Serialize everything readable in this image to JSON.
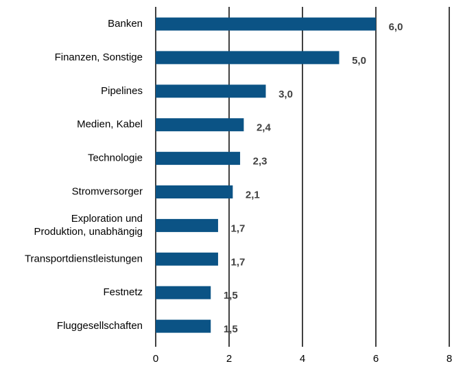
{
  "chart_data": {
    "type": "hbar",
    "categories": [
      "Banken",
      "Finanzen, Sonstige",
      "Pipelines",
      "Medien, Kabel",
      "Technologie",
      "Stromversorger",
      "Exploration und\nProduktion, unabhängig",
      "Transportdienstleistungen",
      "Festnetz",
      "Fluggesellschaften"
    ],
    "values": [
      6.0,
      5.0,
      3.0,
      2.4,
      2.3,
      2.1,
      1.7,
      1.7,
      1.5,
      1.5
    ],
    "value_labels": [
      "6,0",
      "5,0",
      "3,0",
      "2,4",
      "2,3",
      "2,1",
      "1,7",
      "1,7",
      "1,5",
      "1,5"
    ],
    "color": "#0b5385",
    "xlim": [
      0,
      8
    ],
    "xticks": [
      0,
      2,
      4,
      6,
      8
    ],
    "grid": true
  }
}
